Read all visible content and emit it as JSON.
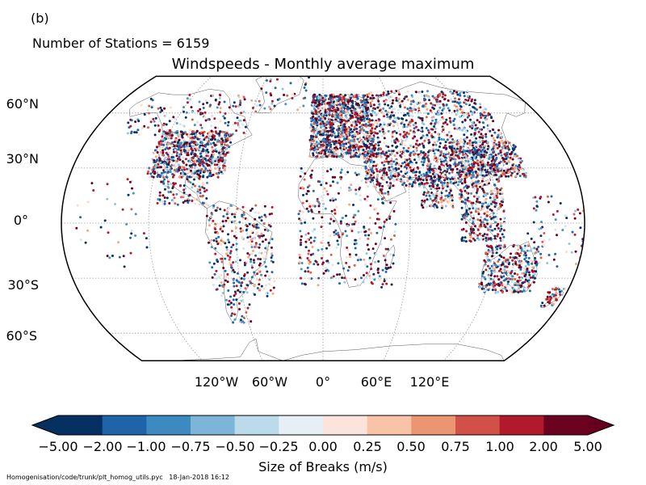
{
  "panel_label": "(b)",
  "station_count": "Number of Stations = 6159",
  "title": "Windspeeds - Monthly average maximum",
  "lat_labels": [
    {
      "name": "lat-60n",
      "text": "60°N",
      "lat": 60
    },
    {
      "name": "lat-30n",
      "text": "30°N",
      "lat": 30
    },
    {
      "name": "lat-0",
      "text": "0°",
      "lat": 0
    },
    {
      "name": "lat-30s",
      "text": "30°S",
      "lat": -30
    },
    {
      "name": "lat-60s",
      "text": "60°S",
      "lat": -60
    }
  ],
  "lon_labels": [
    {
      "name": "lon-120w",
      "text": "120°W",
      "lon": -120
    },
    {
      "name": "lon-60w",
      "text": "60°W",
      "lon": -60
    },
    {
      "name": "lon-0",
      "text": "0°",
      "lon": 0
    },
    {
      "name": "lon-60e",
      "text": "60°E",
      "lon": 60
    },
    {
      "name": "lon-120e",
      "text": "120°E",
      "lon": 120
    }
  ],
  "colorbar": {
    "label": "Size of Breaks (m/s)",
    "ticks": [
      "−5.00",
      "−2.00",
      "−1.00",
      "−0.75",
      "−0.50",
      "−0.25",
      "0.00",
      "0.25",
      "0.50",
      "0.75",
      "1.00",
      "2.00",
      "5.00"
    ],
    "colors": [
      "#053061",
      "#2166ac",
      "#4393c3",
      "#92c5de",
      "#d1e5f0",
      "#f7f7f7",
      "#fddbc7",
      "#f4a582",
      "#d6604d",
      "#b2182b",
      "#67001f"
    ],
    "colors_cells": [
      "#053061",
      "#1f63a8",
      "#3d8ac1",
      "#7cb5d8",
      "#bcdbea",
      "#e6eff6",
      "#fbe4dc",
      "#f8c3a6",
      "#eb9572",
      "#d15148",
      "#b01a2b",
      "#6b0320"
    ],
    "under_color": "#053061",
    "over_color": "#67001f"
  },
  "footer": {
    "path": "Homogenisation/code/trunk/plt_homog_utils.pyc",
    "timestamp": "18-Jan-2018 16:12"
  },
  "map": {
    "projection": "Kavrayskiy VII",
    "grid_lats": [
      -60,
      -30,
      0,
      30,
      60
    ],
    "grid_lons": [
      -120,
      -60,
      0,
      60,
      120
    ],
    "lat_range": [
      -75,
      80
    ],
    "station_total": 6159
  }
}
